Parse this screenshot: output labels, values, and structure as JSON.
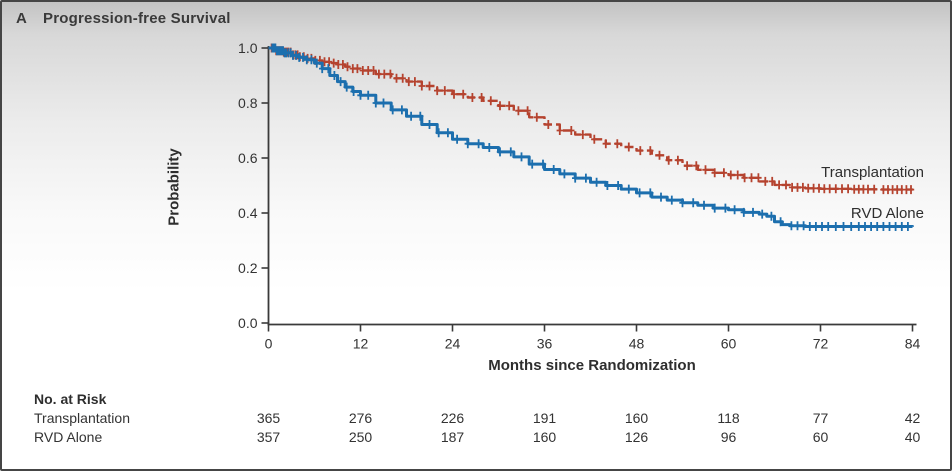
{
  "figure": {
    "panel_letter": "A",
    "title": "Progression-free Survival"
  },
  "chart_data": {
    "type": "line",
    "subtype": "kaplan-meier-step-curves",
    "title": "Progression-free Survival",
    "xlabel": "Months since Randomization",
    "ylabel": "Probability",
    "xlim": [
      0,
      84
    ],
    "ylim": [
      0.0,
      1.0
    ],
    "xticks": [
      0,
      12,
      24,
      36,
      48,
      60,
      72,
      84
    ],
    "ytick_labels": [
      "0.0",
      "0.2",
      "0.4",
      "0.6",
      "0.8",
      "1.0"
    ],
    "grid": false,
    "legend_position": "inline-right-of-curves",
    "series": [
      {
        "name": "Transplantation",
        "color": "#b5432f",
        "line_style": "dashed",
        "points": [
          [
            0,
            1.0
          ],
          [
            1,
            0.99
          ],
          [
            2,
            0.985
          ],
          [
            3,
            0.975
          ],
          [
            4,
            0.968
          ],
          [
            5,
            0.962
          ],
          [
            6,
            0.955
          ],
          [
            7,
            0.95
          ],
          [
            8,
            0.945
          ],
          [
            9,
            0.94
          ],
          [
            10,
            0.932
          ],
          [
            11,
            0.925
          ],
          [
            12,
            0.918
          ],
          [
            14,
            0.905
          ],
          [
            16,
            0.89
          ],
          [
            18,
            0.878
          ],
          [
            20,
            0.862
          ],
          [
            22,
            0.845
          ],
          [
            24,
            0.832
          ],
          [
            26,
            0.82
          ],
          [
            28,
            0.808
          ],
          [
            30,
            0.79
          ],
          [
            32,
            0.772
          ],
          [
            34,
            0.748
          ],
          [
            36,
            0.722
          ],
          [
            38,
            0.7
          ],
          [
            40,
            0.685
          ],
          [
            42,
            0.668
          ],
          [
            44,
            0.652
          ],
          [
            46,
            0.64
          ],
          [
            48,
            0.627
          ],
          [
            50,
            0.61
          ],
          [
            52,
            0.592
          ],
          [
            54,
            0.572
          ],
          [
            56,
            0.557
          ],
          [
            58,
            0.546
          ],
          [
            60,
            0.538
          ],
          [
            62,
            0.528
          ],
          [
            64,
            0.515
          ],
          [
            66,
            0.502
          ],
          [
            68,
            0.493
          ],
          [
            70,
            0.49
          ],
          [
            72,
            0.488
          ],
          [
            76,
            0.486
          ],
          [
            80,
            0.485
          ],
          [
            84,
            0.484
          ]
        ],
        "censor_times": [
          0.4,
          0.6,
          0.8,
          1.0,
          1.2,
          1.4,
          1.6,
          1.8,
          2.0,
          2.2,
          2.4,
          2.6,
          2.9,
          3.2,
          3.5,
          3.8,
          4.1,
          4.6,
          5.1,
          5.6,
          6.1,
          6.7,
          7.3,
          7.9,
          8.5,
          9.1,
          9.7,
          10.3,
          11.0,
          11.6,
          12.3,
          13.0,
          13.7,
          14.4,
          15.1,
          15.9,
          16.7,
          17.5,
          18.3,
          19.1,
          20.0,
          21.0,
          22.0,
          23.0,
          24.2,
          25.4,
          26.6,
          27.8,
          29.0,
          30.2,
          31.4,
          32.6,
          33.8,
          35.0,
          36.5,
          38.0,
          39.5,
          41.0,
          42.5,
          44.0,
          45.5,
          47.0,
          48.5,
          49.8,
          51.0,
          52.2,
          53.4,
          54.6,
          55.8,
          57.0,
          58.2,
          59.4,
          60.3,
          61.2,
          62.1,
          63.0,
          63.9,
          64.8,
          65.7,
          66.6,
          67.5,
          68.3,
          69.0,
          69.7,
          70.4,
          71.1,
          71.8,
          72.5,
          73.2,
          74.0,
          74.8,
          75.6,
          76.4,
          77.0,
          77.6,
          78.2,
          79.0,
          80.2,
          80.8,
          81.4,
          82.0,
          82.6,
          83.2,
          83.8
        ]
      },
      {
        "name": "RVD Alone",
        "color": "#1c6fae",
        "line_style": "solid",
        "points": [
          [
            0,
            1.0
          ],
          [
            1,
            0.99
          ],
          [
            2,
            0.982
          ],
          [
            3,
            0.973
          ],
          [
            4,
            0.966
          ],
          [
            5,
            0.957
          ],
          [
            6,
            0.945
          ],
          [
            7,
            0.925
          ],
          [
            8,
            0.9
          ],
          [
            9,
            0.878
          ],
          [
            10,
            0.858
          ],
          [
            11,
            0.842
          ],
          [
            12,
            0.828
          ],
          [
            14,
            0.8
          ],
          [
            16,
            0.775
          ],
          [
            18,
            0.752
          ],
          [
            20,
            0.722
          ],
          [
            22,
            0.692
          ],
          [
            24,
            0.668
          ],
          [
            26,
            0.652
          ],
          [
            28,
            0.638
          ],
          [
            30,
            0.622
          ],
          [
            32,
            0.604
          ],
          [
            34,
            0.578
          ],
          [
            36,
            0.558
          ],
          [
            38,
            0.542
          ],
          [
            40,
            0.527
          ],
          [
            42,
            0.512
          ],
          [
            44,
            0.5
          ],
          [
            46,
            0.487
          ],
          [
            48,
            0.473
          ],
          [
            50,
            0.458
          ],
          [
            52,
            0.447
          ],
          [
            54,
            0.437
          ],
          [
            56,
            0.428
          ],
          [
            58,
            0.418
          ],
          [
            60,
            0.412
          ],
          [
            62,
            0.402
          ],
          [
            64,
            0.396
          ],
          [
            65,
            0.388
          ],
          [
            66,
            0.368
          ],
          [
            67,
            0.358
          ],
          [
            68,
            0.354
          ],
          [
            70,
            0.351
          ],
          [
            84,
            0.35
          ]
        ],
        "censor_times": [
          0.5,
          0.7,
          0.9,
          1.1,
          1.3,
          1.5,
          1.7,
          1.9,
          2.1,
          2.3,
          2.6,
          2.9,
          3.2,
          3.6,
          4.0,
          4.5,
          5.0,
          5.6,
          6.3,
          7.0,
          7.8,
          8.6,
          9.4,
          10.2,
          11.1,
          12.0,
          13.0,
          14.0,
          15.0,
          16.2,
          17.4,
          18.6,
          19.8,
          21.0,
          22.2,
          23.4,
          24.6,
          26.0,
          27.4,
          28.8,
          30.2,
          31.6,
          33.0,
          34.4,
          35.8,
          37.2,
          38.6,
          40.0,
          41.4,
          42.8,
          44.2,
          45.6,
          47.0,
          48.4,
          49.8,
          51.2,
          52.6,
          54.0,
          55.4,
          56.8,
          58.2,
          59.6,
          60.8,
          62.0,
          63.2,
          64.4,
          65.6,
          66.8,
          68.2,
          69.0,
          69.8,
          70.6,
          71.4,
          72.2,
          73.0,
          74.0,
          75.0,
          76.0,
          77.0,
          77.8,
          78.6,
          79.4,
          80.2,
          81.0,
          81.8,
          82.6,
          83.4
        ]
      }
    ]
  },
  "risk_table": {
    "title": "No. at Risk",
    "months": [
      0,
      12,
      24,
      36,
      48,
      60,
      72,
      84
    ],
    "rows": [
      {
        "label": "Transplantation",
        "values": [
          365,
          276,
          226,
          191,
          160,
          118,
          77,
          42
        ]
      },
      {
        "label": "RVD Alone",
        "values": [
          357,
          250,
          187,
          160,
          126,
          96,
          60,
          40
        ]
      }
    ]
  },
  "colors": {
    "transplantation": "#b5432f",
    "rvd_alone": "#1c6fae",
    "axis": "#3a3a3a",
    "text": "#2e2e2e"
  }
}
